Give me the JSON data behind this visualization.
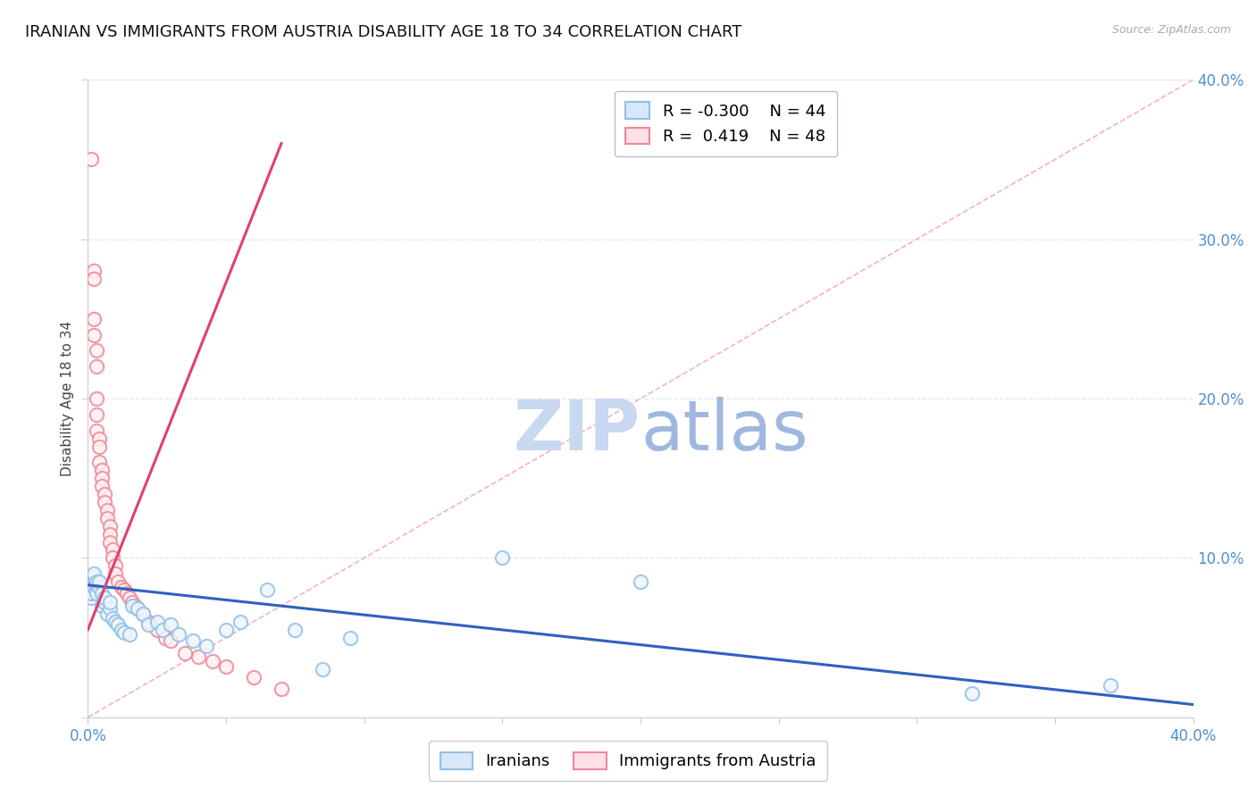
{
  "title": "IRANIAN VS IMMIGRANTS FROM AUSTRIA DISABILITY AGE 18 TO 34 CORRELATION CHART",
  "source": "Source: ZipAtlas.com",
  "ylabel": "Disability Age 18 to 34",
  "xlim": [
    0.0,
    0.4
  ],
  "ylim": [
    0.0,
    0.4
  ],
  "yticks": [
    0.0,
    0.1,
    0.2,
    0.3,
    0.4
  ],
  "xticks": [
    0.0,
    0.05,
    0.1,
    0.15,
    0.2,
    0.25,
    0.3,
    0.35,
    0.4
  ],
  "legend_blue_R": "-0.300",
  "legend_blue_N": "44",
  "legend_blue_label": "Iranians",
  "legend_pink_R": "0.419",
  "legend_pink_N": "48",
  "legend_pink_label": "Immigrants from Austria",
  "blue_color": "#92C0E8",
  "pink_color": "#F08898",
  "blue_line_color": "#3060C0",
  "pink_line_color": "#E04070",
  "ref_line_color": "#F0A0B0",
  "watermark_zip_color": "#C8D8F0",
  "watermark_atlas_color": "#A0B8E0",
  "title_fontsize": 13,
  "axis_label_fontsize": 11,
  "tick_fontsize": 12,
  "tick_color": "#5090D0",
  "background_color": "#FFFFFF",
  "grid_color": "#E0E8F0",
  "blue_scatter_x": [
    0.001,
    0.001,
    0.002,
    0.002,
    0.002,
    0.003,
    0.003,
    0.003,
    0.003,
    0.004,
    0.004,
    0.005,
    0.005,
    0.006,
    0.006,
    0.007,
    0.008,
    0.008,
    0.009,
    0.01,
    0.011,
    0.012,
    0.013,
    0.015,
    0.016,
    0.018,
    0.02,
    0.022,
    0.025,
    0.027,
    0.03,
    0.033,
    0.038,
    0.043,
    0.05,
    0.055,
    0.065,
    0.075,
    0.085,
    0.095,
    0.15,
    0.2,
    0.32,
    0.37
  ],
  "blue_scatter_y": [
    0.075,
    0.078,
    0.082,
    0.088,
    0.09,
    0.08,
    0.083,
    0.085,
    0.078,
    0.082,
    0.085,
    0.07,
    0.078,
    0.072,
    0.075,
    0.065,
    0.068,
    0.072,
    0.062,
    0.06,
    0.058,
    0.055,
    0.053,
    0.052,
    0.07,
    0.068,
    0.065,
    0.058,
    0.06,
    0.055,
    0.058,
    0.052,
    0.048,
    0.045,
    0.055,
    0.06,
    0.08,
    0.055,
    0.03,
    0.05,
    0.1,
    0.085,
    0.015,
    0.02
  ],
  "pink_scatter_x": [
    0.001,
    0.001,
    0.001,
    0.002,
    0.002,
    0.002,
    0.002,
    0.003,
    0.003,
    0.003,
    0.003,
    0.003,
    0.004,
    0.004,
    0.004,
    0.005,
    0.005,
    0.005,
    0.006,
    0.006,
    0.007,
    0.007,
    0.008,
    0.008,
    0.008,
    0.009,
    0.009,
    0.01,
    0.01,
    0.011,
    0.012,
    0.013,
    0.014,
    0.015,
    0.016,
    0.017,
    0.018,
    0.02,
    0.022,
    0.025,
    0.028,
    0.03,
    0.035,
    0.04,
    0.045,
    0.05,
    0.06,
    0.07
  ],
  "pink_scatter_y": [
    0.35,
    0.082,
    0.078,
    0.28,
    0.275,
    0.25,
    0.24,
    0.23,
    0.22,
    0.2,
    0.19,
    0.18,
    0.175,
    0.17,
    0.16,
    0.155,
    0.15,
    0.145,
    0.14,
    0.135,
    0.13,
    0.125,
    0.12,
    0.115,
    0.11,
    0.105,
    0.1,
    0.095,
    0.09,
    0.085,
    0.082,
    0.08,
    0.078,
    0.075,
    0.072,
    0.07,
    0.068,
    0.065,
    0.06,
    0.055,
    0.05,
    0.048,
    0.04,
    0.038,
    0.035,
    0.032,
    0.025,
    0.018
  ],
  "blue_trend_x": [
    0.0,
    0.4
  ],
  "blue_trend_y": [
    0.083,
    0.008
  ],
  "pink_trend_x": [
    0.0,
    0.07
  ],
  "pink_trend_y": [
    0.055,
    0.36
  ],
  "ref_line_x": [
    0.0,
    0.4
  ],
  "ref_line_y": [
    0.0,
    0.4
  ]
}
